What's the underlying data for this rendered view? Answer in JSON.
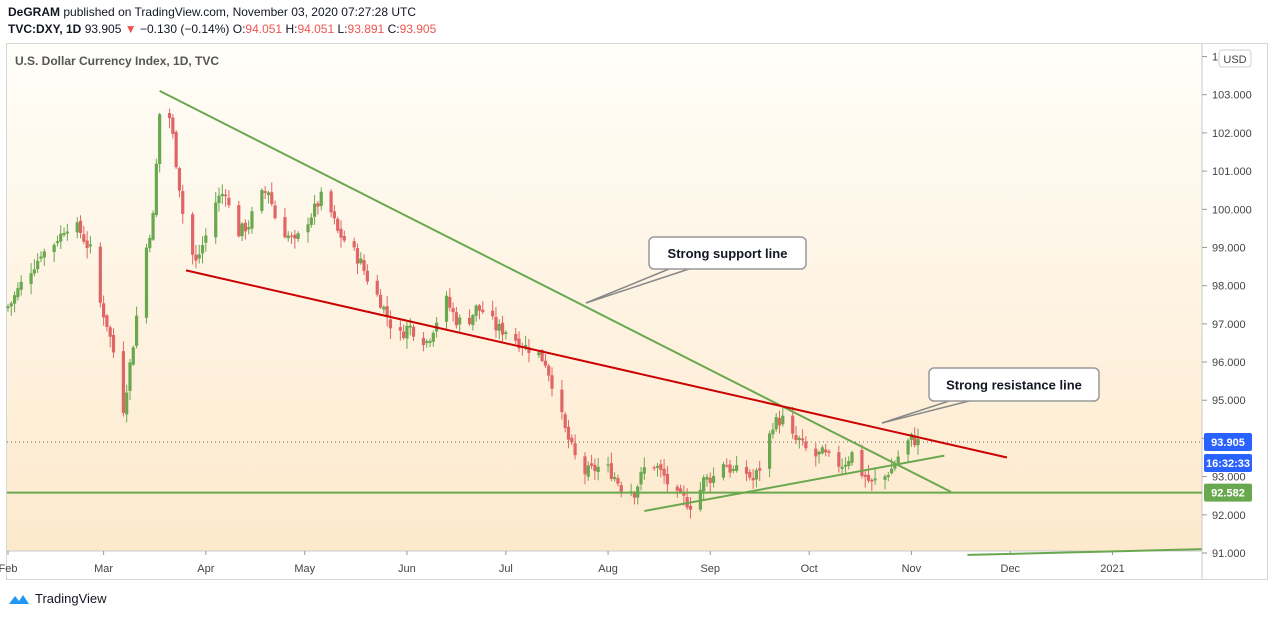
{
  "header": {
    "author": "DeGRAM",
    "published_text": "published on TradingView.com, November 03, 2020 07:27:28 UTC",
    "symbol": "TVC:DXY, 1D",
    "last": "93.905",
    "change": "−0.130 (−0.14%)",
    "o_label": "O:",
    "o_value": "94.051",
    "h_label": "H:",
    "h_value": "94.051",
    "l_label": "L:",
    "l_value": "93.891",
    "c_label": "C:",
    "c_value": "93.905"
  },
  "footer": {
    "brand": "TradingView"
  },
  "colors": {
    "up": "#6aa84f",
    "down": "#e06666",
    "support": "#6aa84f",
    "resistance": "#cc0000",
    "price_badge": "#2962ff",
    "level_badge": "#6aa84f",
    "bg_top": "#fffef9",
    "bg_bottom": "#fde9cc"
  },
  "chart_data": {
    "type": "candlestick",
    "title": "U.S. Dollar Currency Index, 1D, TVC",
    "currency_button": "USD",
    "ylim": [
      90.9,
      104.0
    ],
    "y_ticks": [
      91,
      92,
      93,
      94,
      95,
      96,
      97,
      98,
      99,
      100,
      101,
      102,
      103,
      104
    ],
    "y_tick_labels": [
      "91.000",
      "92.000",
      "93.000",
      "94.000",
      "95.000",
      "96.000",
      "97.000",
      "98.000",
      "99.000",
      "100.000",
      "101.000",
      "102.000",
      "103.000",
      "104.000"
    ],
    "x_labels": [
      "Feb",
      "Mar",
      "Apr",
      "May",
      "Jun",
      "Jul",
      "Aug",
      "Sep",
      "Oct",
      "Nov",
      "Dec",
      "2021"
    ],
    "x_label_days": [
      0,
      29,
      60,
      90,
      121,
      151,
      182,
      213,
      243,
      274,
      304,
      335
    ],
    "xlim_days": [
      0,
      362
    ],
    "current_price": 93.905,
    "current_price_label": "93.905",
    "countdown": "16:32:33",
    "level": 92.582,
    "level_label": "92.582",
    "close_points": [
      [
        0,
        97.4
      ],
      [
        5,
        98.2
      ],
      [
        10,
        98.8
      ],
      [
        15,
        99.2
      ],
      [
        19,
        99.7
      ],
      [
        22,
        99.4
      ],
      [
        25,
        98.9
      ],
      [
        27,
        97.8
      ],
      [
        30,
        97.0
      ],
      [
        33,
        95.9
      ],
      [
        35,
        94.8
      ],
      [
        38,
        96.5
      ],
      [
        41,
        98.6
      ],
      [
        44,
        99.8
      ],
      [
        46,
        102.5
      ],
      [
        48,
        102.9
      ],
      [
        50,
        101.9
      ],
      [
        52,
        100.6
      ],
      [
        54,
        99.2
      ],
      [
        57,
        98.6
      ],
      [
        60,
        99.3
      ],
      [
        63,
        100.2
      ],
      [
        66,
        100.5
      ],
      [
        68,
        99.6
      ],
      [
        70,
        99.4
      ],
      [
        73,
        99.6
      ],
      [
        76,
        100.3
      ],
      [
        79,
        100.5
      ],
      [
        81,
        99.8
      ],
      [
        84,
        99.4
      ],
      [
        87,
        99.1
      ],
      [
        90,
        99.6
      ],
      [
        93,
        100.0
      ],
      [
        95,
        100.3
      ],
      [
        98,
        99.9
      ],
      [
        100,
        99.4
      ],
      [
        104,
        99.0
      ],
      [
        107,
        98.6
      ],
      [
        110,
        98.0
      ],
      [
        113,
        97.6
      ],
      [
        116,
        97.0
      ],
      [
        119,
        96.7
      ],
      [
        121,
        96.9
      ],
      [
        124,
        96.8
      ],
      [
        127,
        96.5
      ],
      [
        130,
        97.1
      ],
      [
        133,
        97.6
      ],
      [
        136,
        97.1
      ],
      [
        139,
        97.0
      ],
      [
        142,
        97.4
      ],
      [
        145,
        97.3
      ],
      [
        148,
        96.9
      ],
      [
        151,
        96.8
      ],
      [
        154,
        96.6
      ],
      [
        157,
        96.4
      ],
      [
        160,
        96.3
      ],
      [
        163,
        96.0
      ],
      [
        166,
        95.2
      ],
      [
        169,
        94.2
      ],
      [
        172,
        93.5
      ],
      [
        175,
        93.1
      ],
      [
        178,
        93.2
      ],
      [
        181,
        93.3
      ],
      [
        184,
        93.0
      ],
      [
        187,
        92.6
      ],
      [
        190,
        92.6
      ],
      [
        193,
        93.2
      ],
      [
        196,
        93.3
      ],
      [
        199,
        93.0
      ],
      [
        202,
        92.5
      ],
      [
        205,
        92.4
      ],
      [
        208,
        92.2
      ],
      [
        211,
        92.9
      ],
      [
        214,
        93.0
      ],
      [
        217,
        93.4
      ],
      [
        220,
        93.1
      ],
      [
        223,
        93.2
      ],
      [
        226,
        92.9
      ],
      [
        229,
        93.4
      ],
      [
        232,
        94.4
      ],
      [
        235,
        94.5
      ],
      [
        238,
        94.0
      ],
      [
        241,
        93.8
      ],
      [
        244,
        93.5
      ],
      [
        247,
        93.6
      ],
      [
        250,
        93.4
      ],
      [
        253,
        93.3
      ],
      [
        256,
        93.6
      ],
      [
        259,
        93.1
      ],
      [
        262,
        92.8
      ],
      [
        265,
        92.9
      ],
      [
        268,
        93.2
      ],
      [
        271,
        93.7
      ],
      [
        274,
        94.0
      ],
      [
        276,
        93.9
      ]
    ],
    "annotations": [
      {
        "text": "Strong support line"
      },
      {
        "text": "Strong resistance line"
      }
    ],
    "trendlines": [
      {
        "name": "support",
        "p1": [
          46,
          103.1
        ],
        "p2": [
          286,
          92.6
        ]
      },
      {
        "name": "resistance",
        "p1": [
          54,
          98.4
        ],
        "p2": [
          303,
          93.5
        ]
      },
      {
        "name": "rising-lower",
        "p1": [
          193,
          92.1
        ],
        "p2": [
          284,
          93.55
        ]
      },
      {
        "name": "rising-long",
        "p1": [
          291,
          90.95
        ],
        "p2": [
          362,
          91.1
        ]
      }
    ]
  }
}
